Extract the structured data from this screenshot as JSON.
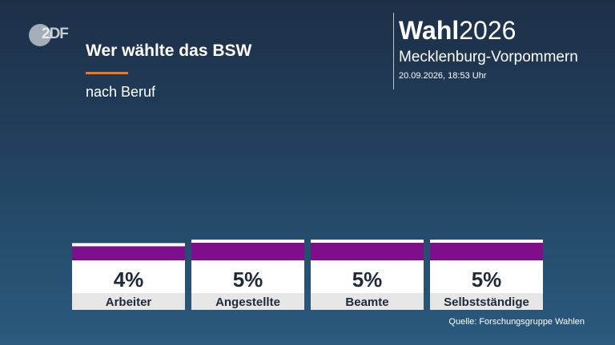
{
  "header": {
    "title": "Wer wählte das BSW",
    "subtitle": "nach Beruf",
    "logo_text": "2DF"
  },
  "brand": {
    "strong": "Wahl",
    "light": "2026",
    "region": "Mecklenburg-Vorpommern",
    "datetime": "20.09.2026, 18:53 Uhr"
  },
  "chart_data": {
    "type": "bar",
    "categories": [
      "Arbeiter",
      "Angestellte",
      "Beamte",
      "Selbstständige"
    ],
    "values": [
      4,
      5,
      5,
      5
    ],
    "value_labels": [
      "4%",
      "5%",
      "5%",
      "5%"
    ],
    "ylim": [
      0,
      5
    ],
    "bar_color": "#7f0e8a",
    "title": "Wer wählte das BSW",
    "subtitle": "nach Beruf",
    "xlabel": "",
    "ylabel": "",
    "grid": false,
    "legend": "none"
  },
  "source": "Quelle: Forschungsgruppe Wahlen",
  "colors": {
    "accent": "#f07a1a",
    "bar": "#7f0e8a",
    "label_bg": "#e6e6e6"
  }
}
